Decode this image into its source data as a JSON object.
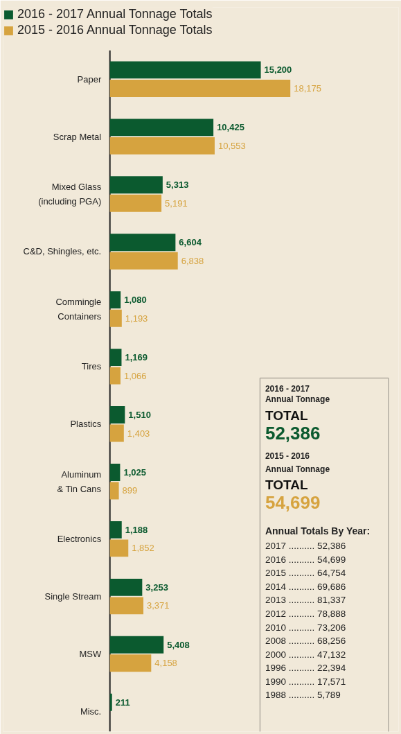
{
  "chart_data": {
    "type": "bar",
    "orientation": "horizontal",
    "legend": "top left",
    "grid": false,
    "categories": [
      "Paper",
      "Scrap Metal",
      "Mixed Glass\n(including PGA)",
      "C&D, Shingles, etc.",
      "Commingle\nContainers",
      "Tires",
      "Plastics",
      "Aluminum\n& Tin Cans",
      "Electronics",
      "Single Stream",
      "MSW",
      "Misc."
    ],
    "series": [
      {
        "name": "2016 - 2017 Annual Tonnage Totals",
        "color": "#0b5a2f",
        "values": [
          15200,
          10425,
          5313,
          6604,
          1080,
          1169,
          1510,
          1025,
          1188,
          3253,
          5408,
          211
        ],
        "value_labels": [
          "15,200",
          "10,425",
          "5,313",
          "6,604",
          "1,080",
          "1,169",
          "1,510",
          "1,025",
          "1,188",
          "3,253",
          "5,408",
          "211"
        ]
      },
      {
        "name": "2015 - 2016 Annual Tonnage Totals",
        "color": "#d6a33f",
        "values": [
          18175,
          10553,
          5191,
          6838,
          1193,
          1066,
          1403,
          899,
          1852,
          3371,
          4158,
          null
        ],
        "value_labels": [
          "18,175",
          "10,553",
          "5,191",
          "6,838",
          "1,193",
          "1,066",
          "1,403",
          "899",
          "1,852",
          "3,371",
          "4,158",
          null
        ]
      }
    ],
    "annotations": [
      "2016 - 2017",
      "Annual Tonnage",
      "TOTAL",
      "52,386",
      "2015 - 2016",
      "Annual Tonnage",
      "TOTAL",
      "54,699",
      "Annual Totals By Year:",
      "2017 .......... 52,386",
      "2016 .......... 54,699",
      "2015 .......... 64,754",
      "2014 .......... 69,686",
      "2013 .......... 81,337",
      "2012 .......... 78,888",
      "2010 .......... 73,206",
      "2008 .......... 68,256",
      "2000 .......... 47,132",
      "1996 .......... 22,394",
      "1990 .......... 17,571",
      "1988 .......... 5,789"
    ]
  }
}
